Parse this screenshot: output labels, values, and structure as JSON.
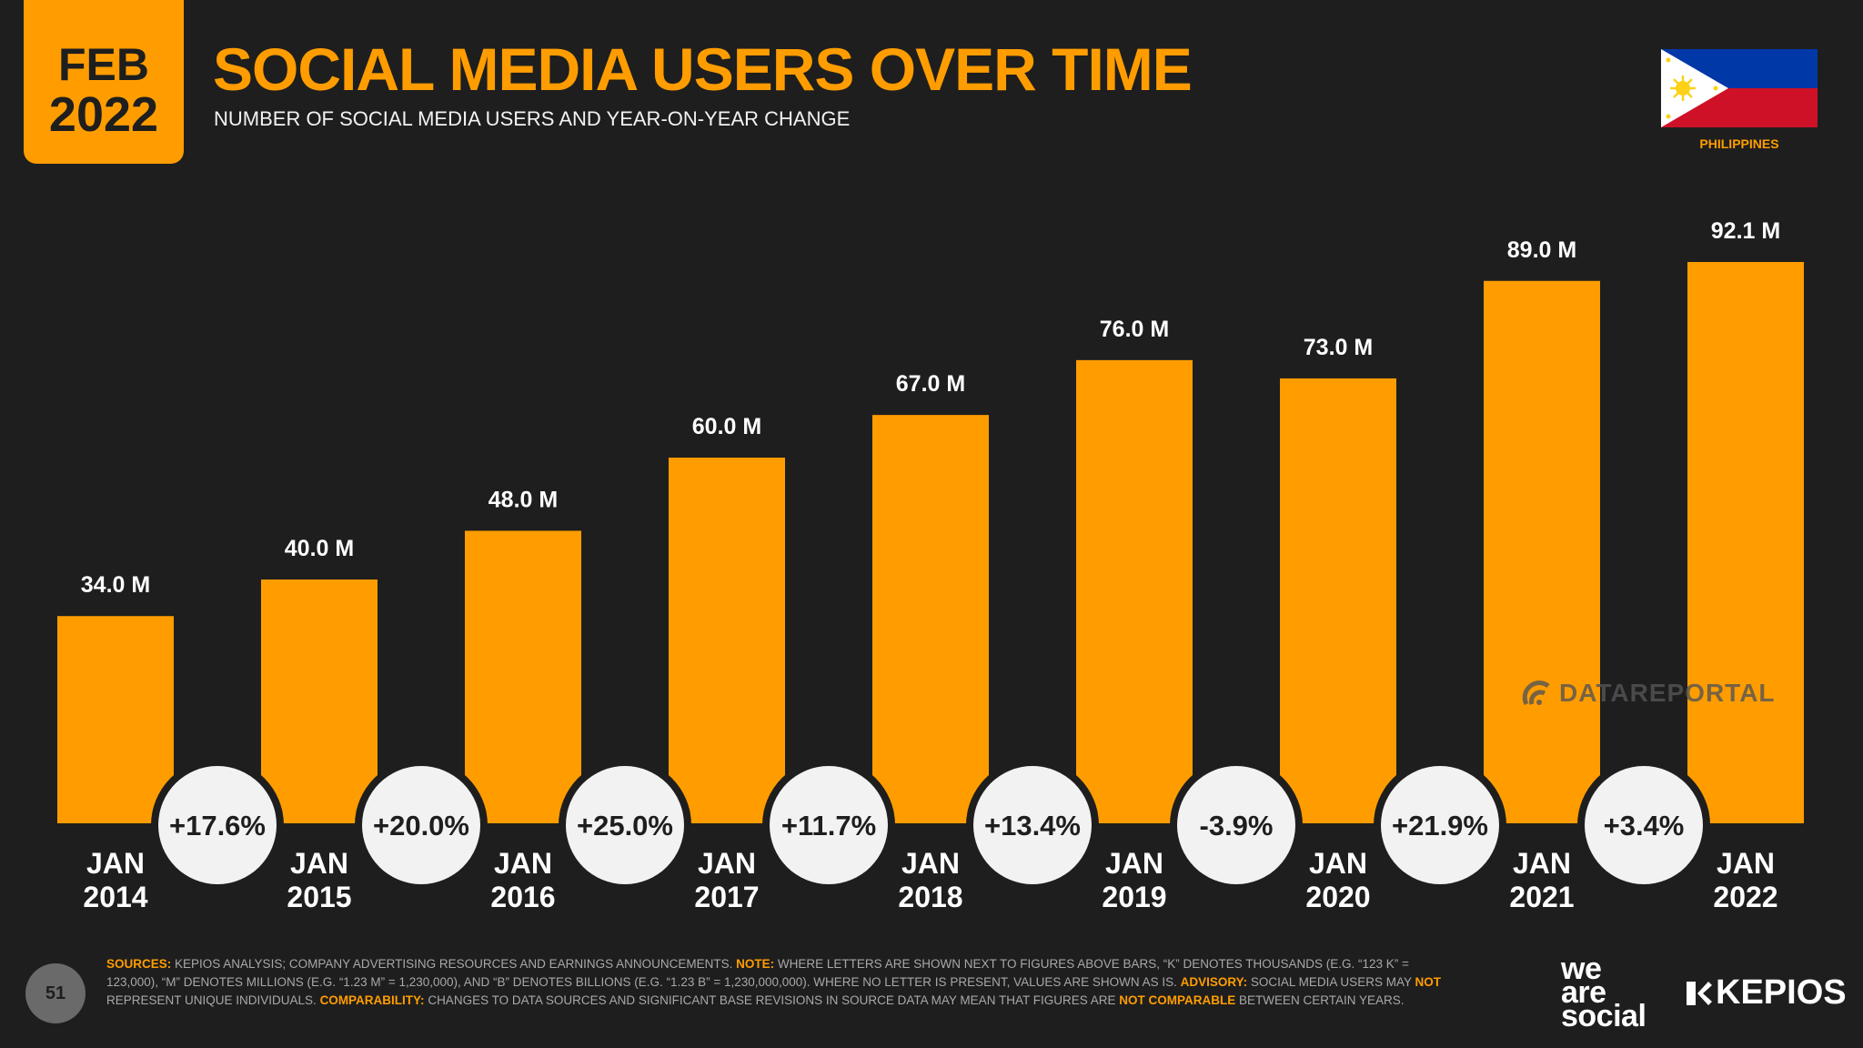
{
  "header": {
    "badge_month": "FEB",
    "badge_year": "2022",
    "title": "SOCIAL MEDIA USERS OVER TIME",
    "subtitle": "NUMBER OF SOCIAL MEDIA USERS AND YEAR-ON-YEAR CHANGE",
    "country": "PHILIPPINES"
  },
  "chart_data": {
    "type": "bar",
    "title": "SOCIAL MEDIA USERS OVER TIME",
    "unit": "millions",
    "categories": [
      {
        "line1": "JAN",
        "line2": "2014"
      },
      {
        "line1": "JAN",
        "line2": "2015"
      },
      {
        "line1": "JAN",
        "line2": "2016"
      },
      {
        "line1": "JAN",
        "line2": "2017"
      },
      {
        "line1": "JAN",
        "line2": "2018"
      },
      {
        "line1": "JAN",
        "line2": "2019"
      },
      {
        "line1": "JAN",
        "line2": "2020"
      },
      {
        "line1": "JAN",
        "line2": "2021"
      },
      {
        "line1": "JAN",
        "line2": "2022"
      }
    ],
    "values": [
      34.0,
      40.0,
      48.0,
      60.0,
      67.0,
      76.0,
      73.0,
      89.0,
      92.1
    ],
    "value_labels": [
      "34.0 M",
      "40.0 M",
      "48.0 M",
      "60.0 M",
      "67.0 M",
      "76.0 M",
      "73.0 M",
      "89.0 M",
      "92.1 M"
    ],
    "yoy_changes": [
      "+17.6%",
      "+20.0%",
      "+25.0%",
      "+11.7%",
      "+13.4%",
      "-3.9%",
      "+21.9%",
      "+3.4%"
    ],
    "ylim": [
      0,
      92.1
    ],
    "bar_color": "#ff9d00"
  },
  "watermark": "DATAREPORTAL",
  "footnote": {
    "sources_label": "SOURCES:",
    "sources_text": " KEPIOS ANALYSIS; COMPANY ADVERTISING RESOURCES AND EARNINGS ANNOUNCEMENTS. ",
    "note_label": "NOTE:",
    "note_text": " WHERE LETTERS ARE SHOWN NEXT TO FIGURES ABOVE BARS, “K” DENOTES THOUSANDS (E.G. “123 K” = 123,000), “M” DENOTES MILLIONS (E.G. “1.23 M” = 1,230,000), AND “B” DENOTES BILLIONS (E.G. “1.23 B” = 1,230,000,000). WHERE NO LETTER IS PRESENT, VALUES ARE SHOWN AS IS. ",
    "advisory_label": "ADVISORY:",
    "advisory_text_a": " SOCIAL MEDIA USERS MAY ",
    "advisory_not": "NOT",
    "advisory_text_b": " REPRESENT UNIQUE INDIVIDUALS. ",
    "comparability_label": "COMPARABILITY:",
    "comparability_text": " CHANGES TO DATA SOURCES AND SIGNIFICANT BASE REVISIONS IN SOURCE DATA MAY MEAN THAT FIGURES ARE ",
    "comparability_not": "NOT COMPARABLE",
    "comparability_tail": " BETWEEN CERTAIN YEARS."
  },
  "page_number": "51",
  "brands": {
    "was_line1": "we",
    "was_line2": "are",
    "was_line3": "social",
    "kepios": "KEPIOS"
  }
}
